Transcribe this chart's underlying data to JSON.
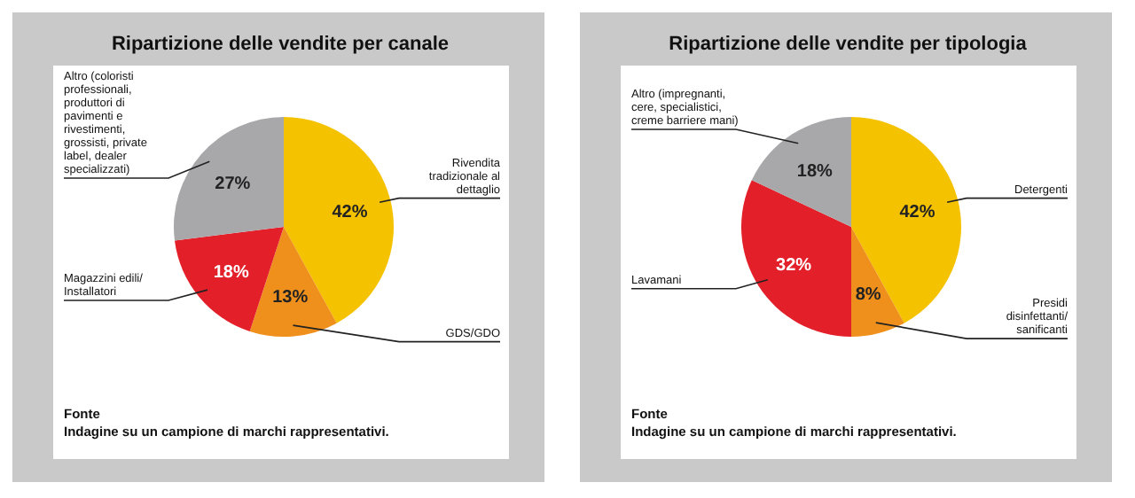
{
  "chart_data": [
    {
      "type": "pie",
      "title": "Ripartizione delle vendite per canale",
      "categories": [
        "Rivendita tradizionale al dettaglio",
        "GDS/GDO",
        "Magazzini edili/ Installatori",
        "Altro (coloristi professionali, produttori di pavimenti e rivestimenti, grossisti, private label, dealer specializzati)"
      ],
      "values": [
        42,
        13,
        18,
        27
      ],
      "value_labels": [
        "42%",
        "13%",
        "18%",
        "27%"
      ],
      "colors": [
        "#f5c200",
        "#f0901c",
        "#e3202a",
        "#a8a8aa"
      ],
      "annotations": [
        "Fonte",
        "Indagine su un campione di marchi rappresentativi."
      ]
    },
    {
      "type": "pie",
      "title": "Ripartizione delle vendite per tipologia",
      "categories": [
        "Detergenti",
        "Presidi disinfettanti/ sanificanti",
        "Lavamani",
        "Altro (impregnanti, cere, specialistici, creme barriere mani)"
      ],
      "values": [
        42,
        8,
        32,
        18
      ],
      "value_labels": [
        "42%",
        "8%",
        "32%",
        "18%"
      ],
      "colors": [
        "#f5c200",
        "#f0901c",
        "#e3202a",
        "#a8a8aa"
      ],
      "annotations": [
        "Fonte",
        "Indagine su un campione di marchi rappresentativi."
      ]
    }
  ]
}
